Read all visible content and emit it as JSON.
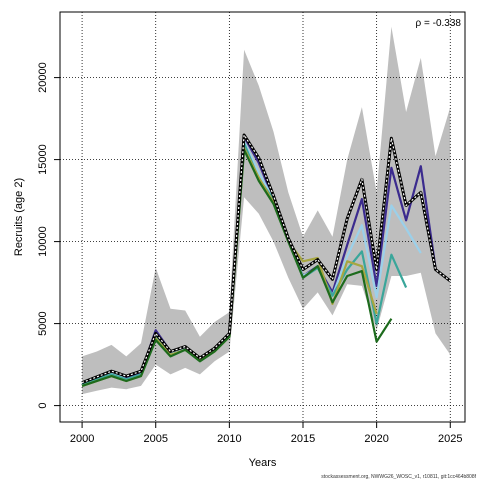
{
  "chart_data": {
    "type": "line",
    "title": "",
    "xlabel": "Years",
    "ylabel": "Recruits (age 2)",
    "xlim": [
      1998.5,
      2026
    ],
    "ylim": [
      -1000,
      24000
    ],
    "xticks": [
      2000,
      2005,
      2010,
      2015,
      2020,
      2025
    ],
    "yticks": [
      0,
      5000,
      10000,
      15000,
      20000
    ],
    "grid": true,
    "annotation": "ρ = -0.338",
    "footnote": "stockassessment.org, NWWG26_WOSC_v1, r10811, git:1cc464b808f",
    "band": {
      "x": [
        2000,
        2001,
        2002,
        2003,
        2004,
        2005,
        2006,
        2007,
        2008,
        2009,
        2010,
        2011,
        2012,
        2013,
        2014,
        2015,
        2016,
        2017,
        2018,
        2019,
        2020,
        2021,
        2022,
        2023,
        2024,
        2025
      ],
      "lower": [
        700,
        900,
        1100,
        1000,
        1200,
        2500,
        1900,
        2300,
        1900,
        2700,
        3300,
        12700,
        11700,
        10000,
        7800,
        5900,
        6900,
        5500,
        7400,
        7300,
        4600,
        7900,
        7900,
        8100,
        4400,
        3100
      ],
      "upper": [
        3000,
        3300,
        3700,
        3000,
        3800,
        8400,
        5900,
        5800,
        4200,
        5100,
        5700,
        21700,
        19500,
        16700,
        13000,
        10300,
        11900,
        10300,
        15000,
        18200,
        13000,
        23100,
        17900,
        21200,
        15200,
        18200
      ],
      "color": "#bebebe"
    },
    "series": [
      {
        "color": "#000000",
        "dashed": true,
        "x": [
          2000,
          2002,
          2003,
          2004,
          2005,
          2006,
          2007,
          2008,
          2009,
          2010,
          2011,
          2012,
          2013,
          2014,
          2015,
          2016,
          2017,
          2018,
          2019,
          2020,
          2021,
          2022,
          2023,
          2024,
          2025
        ],
        "values": [
          1400,
          2100,
          1800,
          2100,
          4400,
          3300,
          3600,
          2900,
          3500,
          4400,
          16500,
          15100,
          12800,
          10200,
          8300,
          8900,
          7700,
          11400,
          13800,
          8300,
          16300,
          12200,
          13000,
          8300,
          7600
        ]
      },
      {
        "color": "#3b2b8e",
        "dashed": false,
        "x": [
          2000,
          2002,
          2003,
          2004,
          2005,
          2006,
          2007,
          2008,
          2009,
          2010,
          2011,
          2012,
          2013,
          2014,
          2015,
          2016,
          2017,
          2018,
          2019,
          2020,
          2021,
          2022,
          2023,
          2024
        ],
        "values": [
          1400,
          2100,
          1700,
          2000,
          4600,
          3300,
          3600,
          2900,
          3500,
          4300,
          16400,
          14800,
          12600,
          10200,
          7900,
          8500,
          6900,
          9800,
          12600,
          7300,
          14500,
          11300,
          14600,
          8400
        ]
      },
      {
        "color": "#9bd0ea",
        "dashed": false,
        "x": [
          2000,
          2002,
          2003,
          2004,
          2005,
          2006,
          2007,
          2008,
          2009,
          2010,
          2011,
          2012,
          2013,
          2014,
          2015,
          2016,
          2017,
          2018,
          2019,
          2020,
          2021,
          2022,
          2023
        ],
        "values": [
          1300,
          2000,
          1600,
          1900,
          4300,
          3200,
          3500,
          2800,
          3400,
          4300,
          16100,
          14200,
          12600,
          10100,
          7900,
          8400,
          6700,
          9100,
          11000,
          6600,
          12200,
          10800,
          9300
        ]
      },
      {
        "color": "#3aa69a",
        "dashed": false,
        "x": [
          2000,
          2002,
          2003,
          2004,
          2005,
          2006,
          2007,
          2008,
          2009,
          2010,
          2011,
          2012,
          2013,
          2014,
          2015,
          2016,
          2017,
          2018,
          2019,
          2020,
          2021,
          2022
        ],
        "values": [
          1300,
          1900,
          1600,
          1900,
          4200,
          3100,
          3400,
          2800,
          3400,
          4300,
          16000,
          13800,
          12600,
          10100,
          7800,
          8400,
          6700,
          8300,
          9400,
          5000,
          9200,
          7200
        ]
      },
      {
        "color": "#a7a640",
        "dashed": false,
        "x": [
          2000,
          2002,
          2003,
          2004,
          2005,
          2006,
          2007,
          2008,
          2009,
          2010,
          2011,
          2012,
          2013,
          2014,
          2015,
          2016,
          2017,
          2018,
          2019,
          2020
        ],
        "values": [
          1200,
          1800,
          1500,
          1800,
          4100,
          3100,
          3400,
          2800,
          3300,
          4200,
          15700,
          13900,
          12400,
          10000,
          8800,
          9000,
          6200,
          8800,
          8500,
          5600
        ]
      },
      {
        "color": "#1d6b1d",
        "dashed": false,
        "x": [
          2000,
          2002,
          2003,
          2004,
          2005,
          2006,
          2007,
          2008,
          2009,
          2010,
          2011,
          2012,
          2013,
          2014,
          2015,
          2016,
          2017,
          2018,
          2019,
          2020,
          2021
        ],
        "values": [
          1200,
          1800,
          1500,
          1800,
          4000,
          3000,
          3400,
          2700,
          3300,
          4200,
          15600,
          13700,
          12300,
          10000,
          7800,
          8500,
          6300,
          7900,
          8200,
          3900,
          5300
        ]
      }
    ]
  }
}
